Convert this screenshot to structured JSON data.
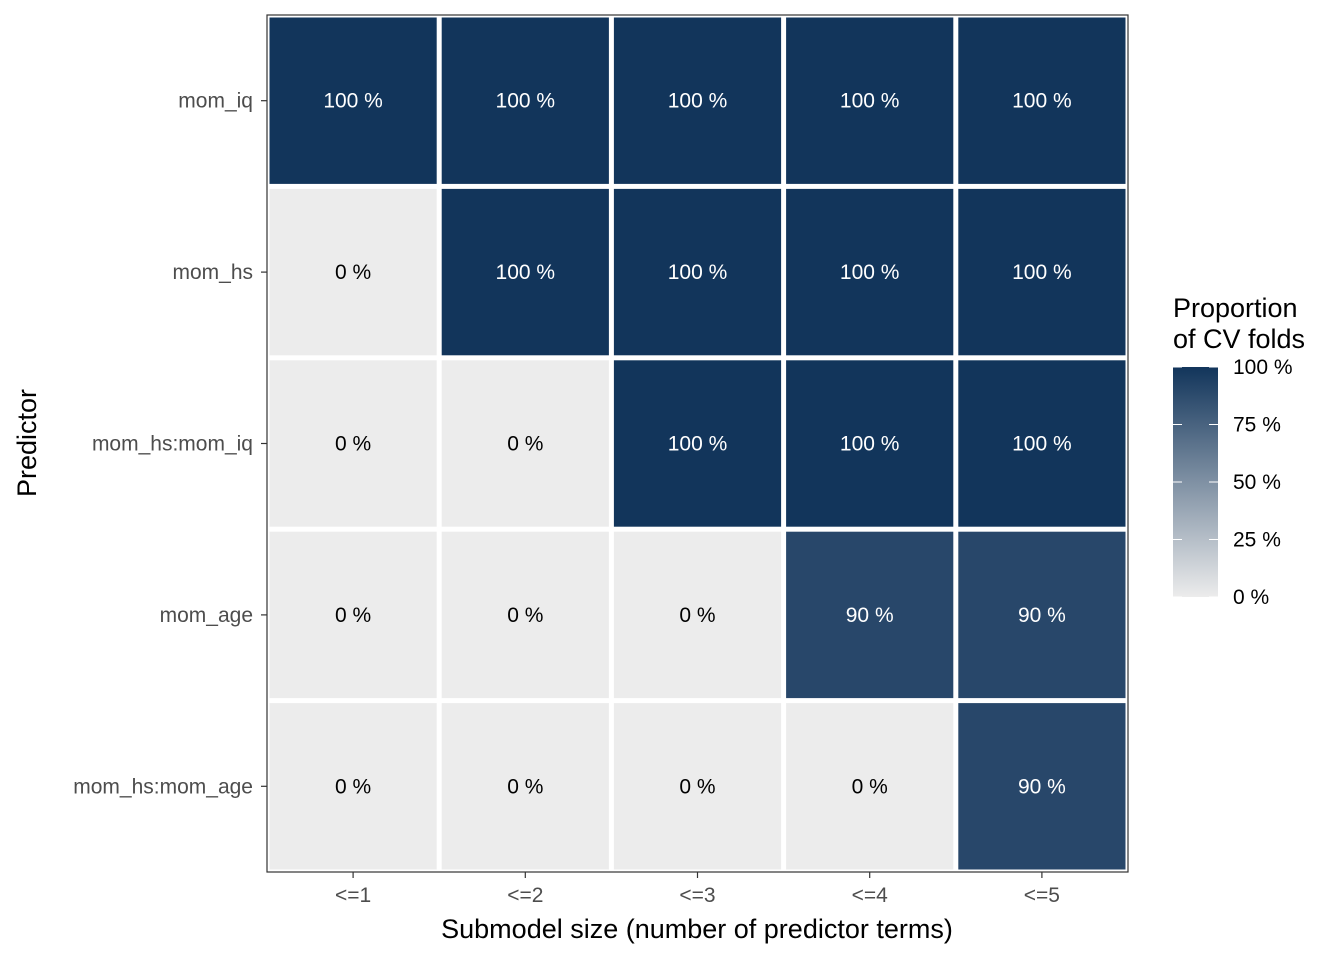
{
  "chart_data": {
    "type": "heatmap",
    "xlabel": "Submodel size (number of predictor terms)",
    "ylabel": "Predictor",
    "x_categories": [
      "<=1",
      "<=2",
      "<=3",
      "<=4",
      "<=5"
    ],
    "y_categories": [
      "mom_iq",
      "mom_hs",
      "mom_hs:mom_iq",
      "mom_age",
      "mom_hs:mom_age"
    ],
    "values": [
      [
        100,
        100,
        100,
        100,
        100
      ],
      [
        0,
        100,
        100,
        100,
        100
      ],
      [
        0,
        0,
        100,
        100,
        100
      ],
      [
        0,
        0,
        0,
        90,
        90
      ],
      [
        0,
        0,
        0,
        0,
        90
      ]
    ],
    "cell_labels": [
      [
        "100 %",
        "100 %",
        "100 %",
        "100 %",
        "100 %"
      ],
      [
        "0 %",
        "100 %",
        "100 %",
        "100 %",
        "100 %"
      ],
      [
        "0 %",
        "0 %",
        "100 %",
        "100 %",
        "100 %"
      ],
      [
        "0 %",
        "0 %",
        "0 %",
        "90 %",
        "90 %"
      ],
      [
        "0 %",
        "0 %",
        "0 %",
        "0 %",
        "90 %"
      ]
    ],
    "value_range": [
      0,
      100
    ],
    "color_low": "#ececec",
    "color_high": "#12355b",
    "text_color_light": "#ffffff",
    "text_color_dark": "#000000",
    "legend": {
      "title_lines": [
        "Proportion",
        "of CV folds"
      ],
      "ticks": [
        100,
        75,
        50,
        25,
        0
      ],
      "tick_labels": [
        "100 %",
        "75 %",
        "50 %",
        "25 %",
        "0 %"
      ],
      "position": "right"
    }
  }
}
